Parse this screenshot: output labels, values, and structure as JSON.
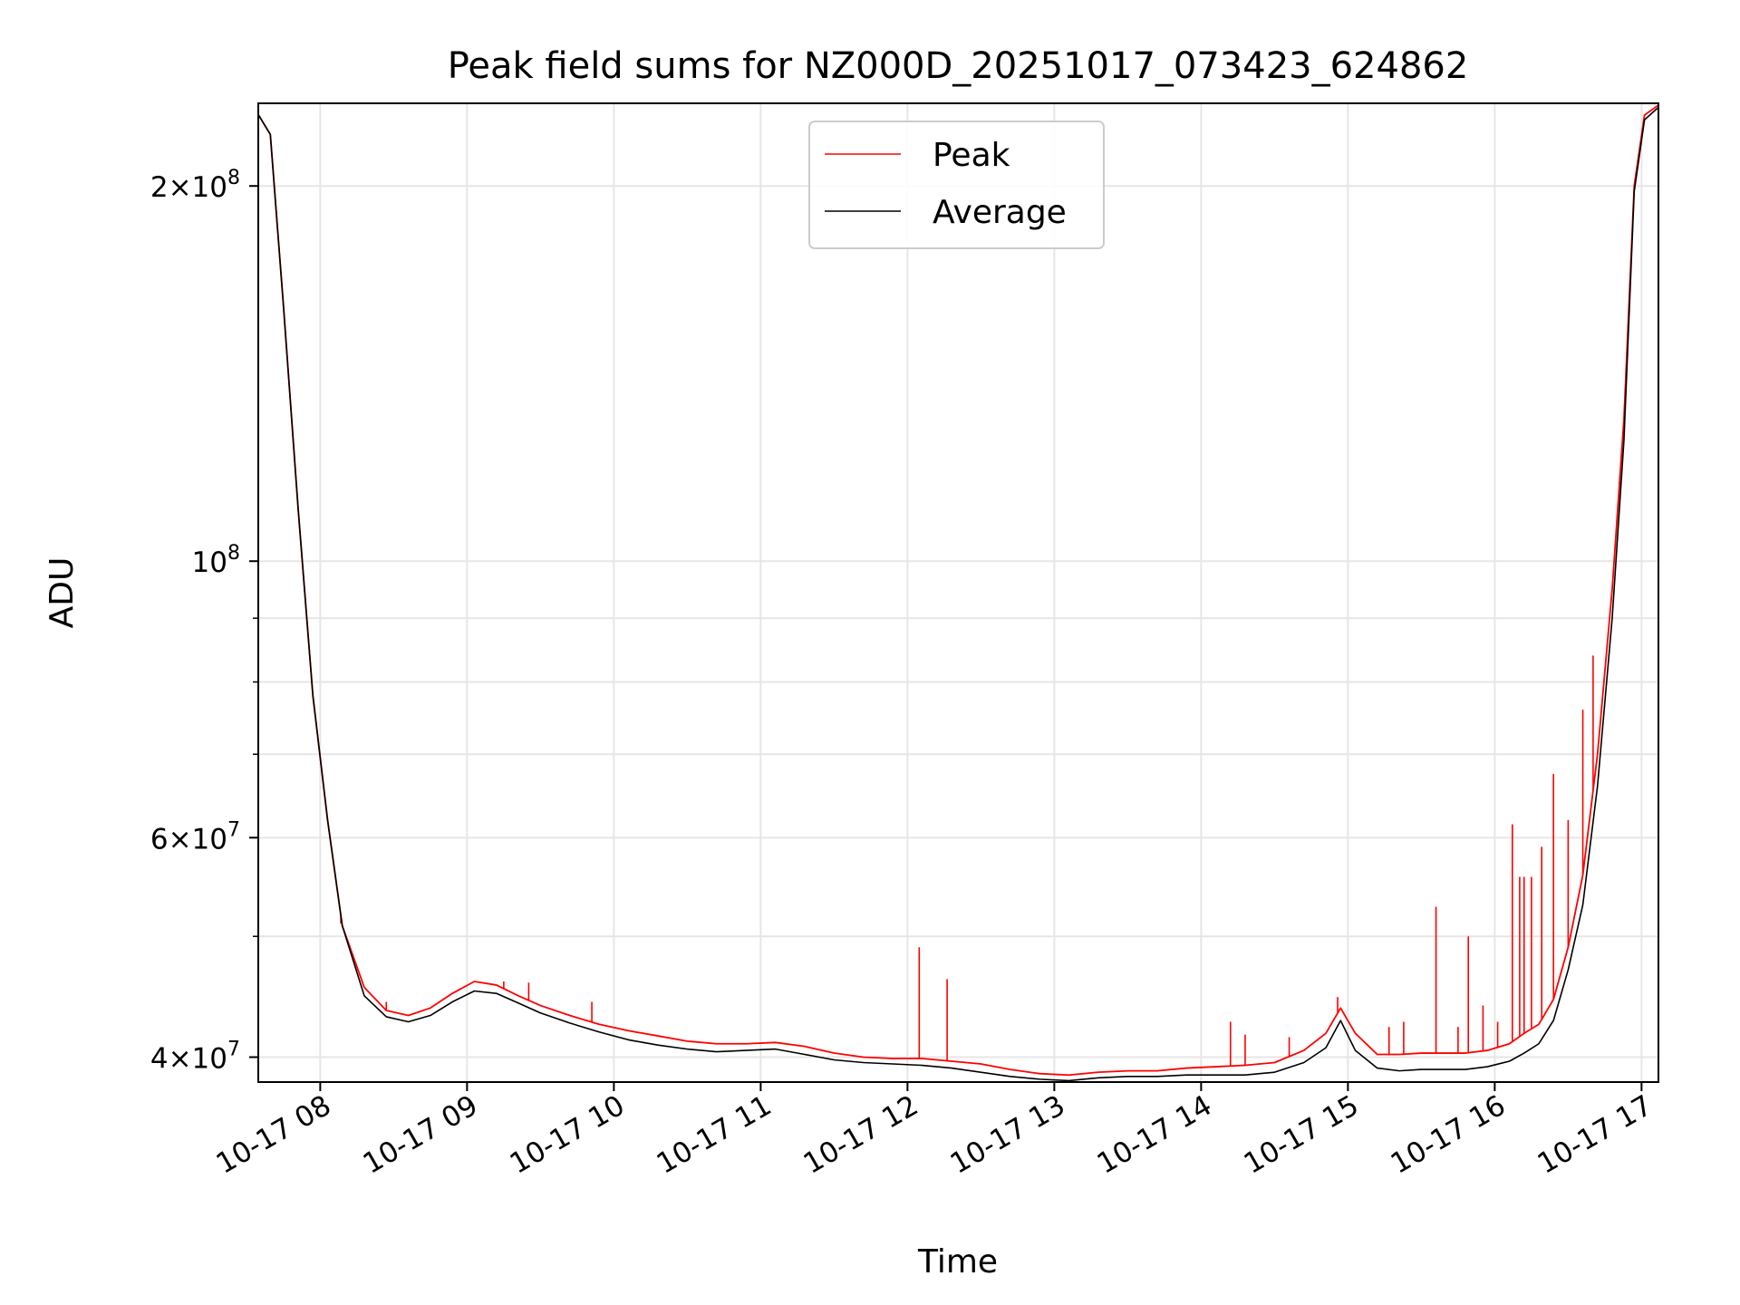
{
  "chart_data": {
    "type": "line",
    "title": "Peak field sums for NZ000D_20251017_073423_624862",
    "xlabel": "Time",
    "ylabel": "ADU",
    "yscale": "log",
    "xlim_hours": [
      7.578,
      17.115
    ],
    "ylim": [
      38200000,
      233000000
    ],
    "grid": true,
    "legend_location": "upper center",
    "x_ticks": [
      {
        "value": 8,
        "label": "10-17 08"
      },
      {
        "value": 9,
        "label": "10-17 09"
      },
      {
        "value": 10,
        "label": "10-17 10"
      },
      {
        "value": 11,
        "label": "10-17 11"
      },
      {
        "value": 12,
        "label": "10-17 12"
      },
      {
        "value": 13,
        "label": "10-17 13"
      },
      {
        "value": 14,
        "label": "10-17 14"
      },
      {
        "value": 15,
        "label": "10-17 15"
      },
      {
        "value": 16,
        "label": "10-17 16"
      },
      {
        "value": 17,
        "label": "10-17 17"
      }
    ],
    "y_ticks": [
      {
        "value": 40000000,
        "mantissa": "4",
        "exponent": "7"
      },
      {
        "value": 60000000,
        "mantissa": "6",
        "exponent": "7"
      },
      {
        "value": 100000000,
        "mantissa": "",
        "exponent": "8"
      },
      {
        "value": 200000000,
        "mantissa": "2",
        "exponent": "8"
      }
    ],
    "y_minor_ticks": [
      50000000,
      70000000,
      80000000,
      90000000
    ],
    "series": [
      {
        "name": "Peak",
        "color": "#ff0000",
        "x": [
          7.58,
          7.66,
          7.75,
          7.85,
          7.95,
          8.05,
          8.15,
          8.3,
          8.45,
          8.6,
          8.75,
          8.9,
          9.05,
          9.2,
          9.35,
          9.5,
          9.7,
          9.9,
          10.1,
          10.3,
          10.5,
          10.7,
          10.9,
          11.1,
          11.3,
          11.5,
          11.7,
          11.9,
          12.1,
          12.3,
          12.5,
          12.7,
          12.9,
          13.1,
          13.3,
          13.5,
          13.7,
          13.9,
          14.1,
          14.3,
          14.5,
          14.7,
          14.85,
          14.95,
          15.05,
          15.2,
          15.35,
          15.5,
          15.65,
          15.8,
          15.95,
          16.1,
          16.2,
          16.3,
          16.4,
          16.5,
          16.6,
          16.7,
          16.8,
          16.88,
          16.95,
          17.02,
          17.11
        ],
        "y": [
          228000000,
          220000000,
          160000000,
          110000000,
          78000000,
          62000000,
          51000000,
          45500000,
          43600000,
          43200000,
          43800000,
          45000000,
          46000000,
          45700000,
          44800000,
          44000000,
          43200000,
          42500000,
          42000000,
          41600000,
          41200000,
          41000000,
          41000000,
          41100000,
          40800000,
          40300000,
          40000000,
          39900000,
          39900000,
          39700000,
          39500000,
          39100000,
          38800000,
          38700000,
          38900000,
          39000000,
          39000000,
          39200000,
          39300000,
          39400000,
          39600000,
          40500000,
          41800000,
          43800000,
          41800000,
          40200000,
          40200000,
          40300000,
          40300000,
          40300000,
          40500000,
          41000000,
          41800000,
          42500000,
          44500000,
          49000000,
          56000000,
          70000000,
          95000000,
          130000000,
          200000000,
          228000000,
          232000000
        ],
        "spikes": [
          {
            "x": 8.14,
            "y": 51200000
          },
          {
            "x": 8.45,
            "y": 44300000
          },
          {
            "x": 9.25,
            "y": 46000000
          },
          {
            "x": 9.42,
            "y": 45900000
          },
          {
            "x": 9.85,
            "y": 44300000
          },
          {
            "x": 12.08,
            "y": 49000000
          },
          {
            "x": 12.27,
            "y": 46200000
          },
          {
            "x": 14.2,
            "y": 42700000
          },
          {
            "x": 14.3,
            "y": 41700000
          },
          {
            "x": 14.6,
            "y": 41500000
          },
          {
            "x": 14.93,
            "y": 44700000
          },
          {
            "x": 15.28,
            "y": 42300000
          },
          {
            "x": 15.38,
            "y": 42700000
          },
          {
            "x": 15.6,
            "y": 52800000
          },
          {
            "x": 15.75,
            "y": 42300000
          },
          {
            "x": 15.82,
            "y": 50000000
          },
          {
            "x": 15.92,
            "y": 44000000
          },
          {
            "x": 16.02,
            "y": 42700000
          },
          {
            "x": 16.12,
            "y": 61500000
          },
          {
            "x": 16.17,
            "y": 55800000
          },
          {
            "x": 16.2,
            "y": 55800000
          },
          {
            "x": 16.25,
            "y": 55800000
          },
          {
            "x": 16.32,
            "y": 59000000
          },
          {
            "x": 16.4,
            "y": 67500000
          },
          {
            "x": 16.5,
            "y": 62000000
          },
          {
            "x": 16.6,
            "y": 76000000
          },
          {
            "x": 16.67,
            "y": 84000000
          },
          {
            "x": 16.85,
            "y": 115000000
          }
        ]
      },
      {
        "name": "Average",
        "color": "#000000",
        "x": [
          7.58,
          7.66,
          7.75,
          7.85,
          7.95,
          8.05,
          8.15,
          8.3,
          8.45,
          8.6,
          8.75,
          8.9,
          9.05,
          9.2,
          9.35,
          9.5,
          9.7,
          9.9,
          10.1,
          10.3,
          10.5,
          10.7,
          10.9,
          11.1,
          11.3,
          11.5,
          11.7,
          11.9,
          12.1,
          12.3,
          12.5,
          12.7,
          12.9,
          13.1,
          13.3,
          13.5,
          13.7,
          13.9,
          14.1,
          14.3,
          14.5,
          14.7,
          14.85,
          14.95,
          15.05,
          15.2,
          15.35,
          15.5,
          15.65,
          15.8,
          15.95,
          16.1,
          16.2,
          16.3,
          16.4,
          16.5,
          16.6,
          16.7,
          16.8,
          16.88,
          16.95,
          17.02,
          17.11
        ],
        "y": [
          228000000,
          220000000,
          160000000,
          110000000,
          78000000,
          62000000,
          51000000,
          44800000,
          43100000,
          42700000,
          43200000,
          44300000,
          45200000,
          45000000,
          44200000,
          43400000,
          42600000,
          41900000,
          41300000,
          40900000,
          40600000,
          40400000,
          40500000,
          40600000,
          40200000,
          39800000,
          39600000,
          39500000,
          39400000,
          39200000,
          38900000,
          38600000,
          38400000,
          38300000,
          38500000,
          38600000,
          38600000,
          38700000,
          38700000,
          38700000,
          38900000,
          39600000,
          40700000,
          42800000,
          40500000,
          39200000,
          39000000,
          39100000,
          39100000,
          39100000,
          39300000,
          39700000,
          40300000,
          41000000,
          42800000,
          47000000,
          53000000,
          66000000,
          90000000,
          125000000,
          198000000,
          226000000,
          231000000
        ]
      }
    ]
  }
}
